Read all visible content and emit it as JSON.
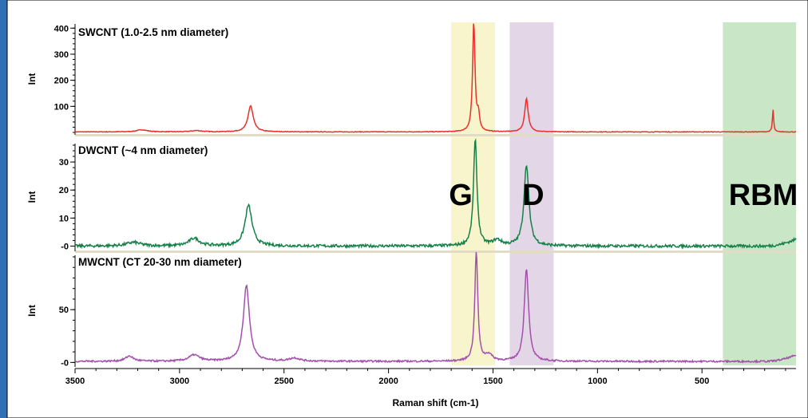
{
  "chart_data": {
    "type": "line",
    "xlabel": "Raman shift (cm-1)",
    "x_range": [
      3500,
      50
    ],
    "x_ticks": [
      3500,
      3000,
      2500,
      2000,
      1500,
      1000,
      500
    ],
    "x_tick_labels": [
      "3500",
      "3000",
      "2500",
      "2000",
      "1500",
      "1000",
      "500"
    ],
    "grid": false,
    "regions": [
      {
        "label": "G",
        "from": 1700,
        "to": 1490,
        "color": "#f8f5cd"
      },
      {
        "label": "D",
        "from": 1420,
        "to": 1210,
        "color": "#e3d6e6"
      },
      {
        "label": "RBM",
        "from": 400,
        "to": 50,
        "color": "#c9e6c6"
      }
    ],
    "panels": [
      {
        "title": "SWCNT (1.0-2.5 nm diameter)",
        "ylabel": "Int",
        "color": "#e8312d",
        "ylim": [
          0,
          410
        ],
        "y_ticks": [
          100,
          200,
          300,
          400
        ],
        "y_tick_labels": [
          "100",
          "200",
          "300",
          "400"
        ],
        "baseline": 2,
        "noise": 1.2,
        "peaks": [
          {
            "x": 3180,
            "height": 8,
            "width": 60
          },
          {
            "x": 2920,
            "height": 5,
            "width": 60
          },
          {
            "x": 2660,
            "height": 100,
            "width": 30
          },
          {
            "x": 1592,
            "height": 420,
            "width": 14
          },
          {
            "x": 1570,
            "height": 60,
            "width": 14
          },
          {
            "x": 1340,
            "height": 128,
            "width": 20
          },
          {
            "x": 160,
            "height": 85,
            "width": 7
          }
        ]
      },
      {
        "title": "DWCNT (~4 nm diameter)",
        "ylabel": "Int",
        "color": "#17804a",
        "ylim": [
          -1,
          36
        ],
        "y_ticks": [
          0,
          10,
          20,
          30
        ],
        "y_tick_labels": [
          "-0",
          "10",
          "20",
          "30"
        ],
        "baseline": 0,
        "noise": 0.5,
        "end_rise": 2.5,
        "peaks": [
          {
            "x": 3220,
            "height": 1.3,
            "width": 80
          },
          {
            "x": 2930,
            "height": 2.8,
            "width": 60
          },
          {
            "x": 2670,
            "height": 14.5,
            "width": 40
          },
          {
            "x": 1585,
            "height": 38,
            "width": 20
          },
          {
            "x": 1340,
            "height": 29,
            "width": 28
          },
          {
            "x": 1480,
            "height": 2,
            "width": 50
          }
        ]
      },
      {
        "title": "MWCNT (CT 20-30 nm diameter)",
        "ylabel": "Int",
        "color": "#a350ac",
        "ylim": [
          -2,
          100
        ],
        "y_ticks": [
          0,
          50
        ],
        "y_tick_labels": [
          "-0",
          "50"
        ],
        "baseline": 1,
        "noise": 0.8,
        "end_rise": 6,
        "peaks": [
          {
            "x": 3240,
            "height": 5,
            "width": 45
          },
          {
            "x": 2930,
            "height": 6,
            "width": 60
          },
          {
            "x": 2680,
            "height": 72,
            "width": 35
          },
          {
            "x": 2450,
            "height": 3,
            "width": 60
          },
          {
            "x": 1580,
            "height": 105,
            "width": 17
          },
          {
            "x": 1340,
            "height": 88,
            "width": 25
          },
          {
            "x": 1520,
            "height": 6,
            "width": 40
          }
        ]
      }
    ]
  }
}
